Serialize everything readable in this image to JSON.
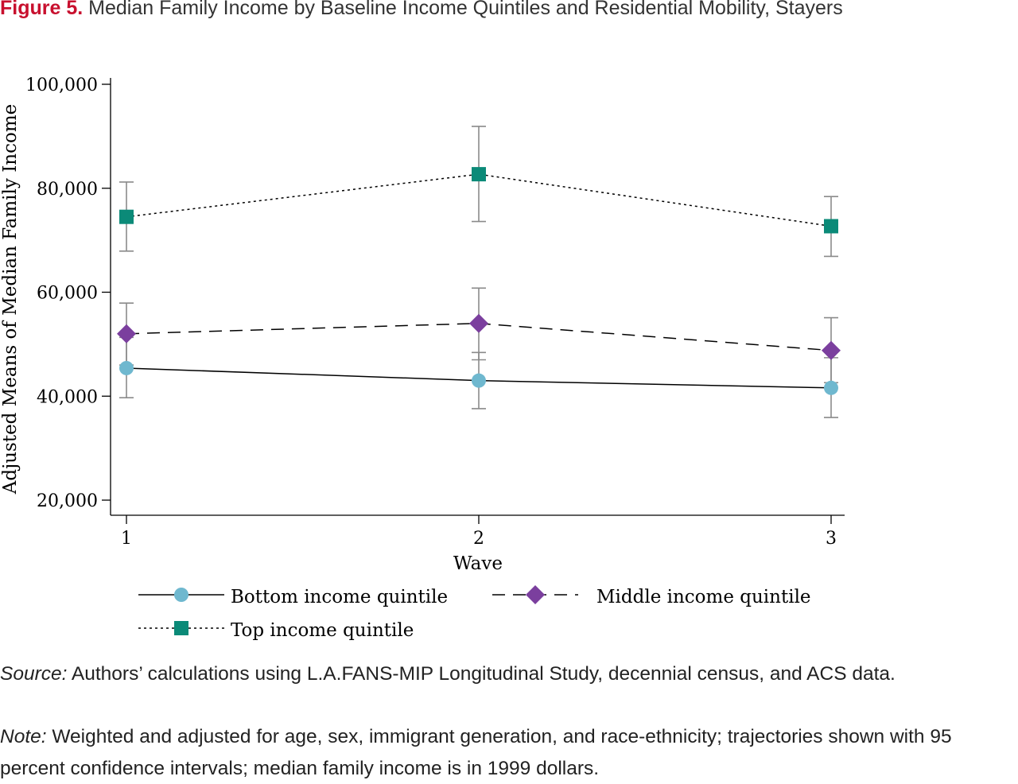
{
  "figure": {
    "label": "Figure 5.",
    "title": "Median Family Income by Baseline Income Quintiles and Residential Mobility, Stayers"
  },
  "chart_data": {
    "type": "line",
    "xlabel": "Wave",
    "ylabel": "Adjusted Means of Median Family Income",
    "x": [
      1,
      2,
      3
    ],
    "x_tick_labels": [
      "1",
      "2",
      "3"
    ],
    "ylim": [
      17000,
      103000
    ],
    "y_ticks": [
      20000,
      40000,
      60000,
      80000,
      100000
    ],
    "y_tick_labels": [
      "20,000",
      "40,000",
      "60,000",
      "80,000",
      "100,000"
    ],
    "error_bars": "95 percent confidence intervals",
    "grid": false,
    "legend_position": "bottom",
    "series": [
      {
        "name": "Bottom income quintile",
        "marker": "circle",
        "line": "solid",
        "color": "#6fb8cf",
        "values": [
          45400,
          43000,
          41600
        ],
        "ci_low": [
          39700,
          37600,
          35900
        ],
        "ci_high": [
          51300,
          48400,
          47400
        ]
      },
      {
        "name": "Middle income quintile",
        "marker": "diamond",
        "line": "dashed",
        "color": "#7b3f9e",
        "values": [
          52000,
          54000,
          48800
        ],
        "ci_low": [
          46000,
          47000,
          42600
        ],
        "ci_high": [
          57900,
          60800,
          55100
        ]
      },
      {
        "name": "Top income quintile",
        "marker": "square",
        "line": "dotted",
        "color": "#0b8a78",
        "values": [
          74500,
          82700,
          72700
        ],
        "ci_low": [
          67900,
          73600,
          66900
        ],
        "ci_high": [
          81200,
          91900,
          78400
        ]
      }
    ]
  },
  "notes": {
    "source_label": "Source:",
    "source_text": " Authors’ calculations using L.A.FANS-MIP Longitudinal Study, decennial census, and ACS data.",
    "note_label": "Note:",
    "note_text": " Weighted and adjusted for age, sex, immigrant generation, and race-ethnicity; trajectories shown with 95 percent confidence intervals; median family income is in 1999 dollars."
  }
}
